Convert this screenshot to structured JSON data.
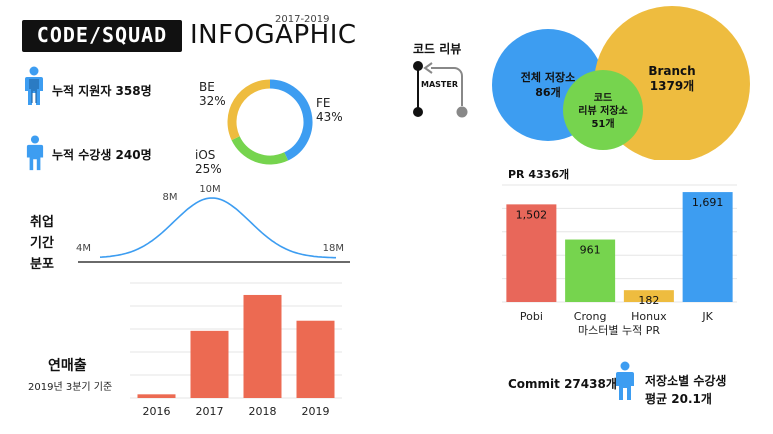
{
  "header": {
    "logo": "CODE/SQUAD",
    "title": "INFOGAPHIC",
    "years": "2017-2019"
  },
  "colors": {
    "blue": "#3d9df1",
    "yellow": "#eebc3f",
    "green": "#76d44e",
    "red": "#e8675a",
    "redbar": "#ec6a52",
    "dark": "#111111"
  },
  "stats": {
    "applicants": "누적 지원자 358명",
    "students": "누적 수강생 240명"
  },
  "chart_data": [
    {
      "type": "pie",
      "variant": "donut",
      "labels": [
        "BE",
        "FE",
        "iOS"
      ],
      "values": [
        32,
        43,
        25
      ],
      "display": [
        "32%",
        "43%",
        "25%"
      ],
      "colors": [
        "#eebc3f",
        "#3d9df1",
        "#76d44e"
      ]
    },
    {
      "type": "line",
      "title": "취업 기간 분포",
      "title_lines": [
        "취업",
        "기간",
        "분포"
      ],
      "points": [
        {
          "label": "4M",
          "value": 4
        },
        {
          "label": "8M",
          "value": 8
        },
        {
          "label": "10M",
          "value": 10
        },
        {
          "label": "18M",
          "value": 18
        }
      ],
      "shape": "bell-curve"
    },
    {
      "type": "bar",
      "title": "연매출",
      "subtitle": "2019년 3분기 기준",
      "categories": [
        "2016",
        "2017",
        "2018",
        "2019"
      ],
      "values": [
        4,
        73,
        112,
        84
      ],
      "ylim": [
        0,
        125
      ],
      "color": "#ec6a52"
    },
    {
      "type": "bubble",
      "title": "코드 리뷰",
      "items": [
        {
          "label": "전체 저장소",
          "value_text": "86개",
          "value": 86,
          "color": "#3d9df1"
        },
        {
          "label": "Branch",
          "value_text": "1379개",
          "value": 1379,
          "color": "#eebc3f"
        },
        {
          "label": "코드 리뷰 저장소",
          "label_lines": [
            "코드",
            "리뷰 저장소"
          ],
          "value_text": "51개",
          "value": 51,
          "color": "#76d44e"
        }
      ],
      "diagram_label": "MASTER"
    },
    {
      "type": "bar",
      "title": "PR 4336개",
      "xlabel": "마스터별 누적 PR",
      "categories": [
        "Pobi",
        "Crong",
        "Honux",
        "JK"
      ],
      "values": [
        1502,
        961,
        182,
        1691
      ],
      "value_labels": [
        "1,502",
        "961",
        "182",
        "1,691"
      ],
      "colors": [
        "#e8675a",
        "#76d44e",
        "#eebc3f",
        "#3d9df1"
      ],
      "ylim": [
        0,
        1800
      ]
    }
  ],
  "footer": {
    "commit": "Commit 27438개",
    "avg_line1": "저장소별 수강생",
    "avg_line2": "평균 20.1개"
  }
}
